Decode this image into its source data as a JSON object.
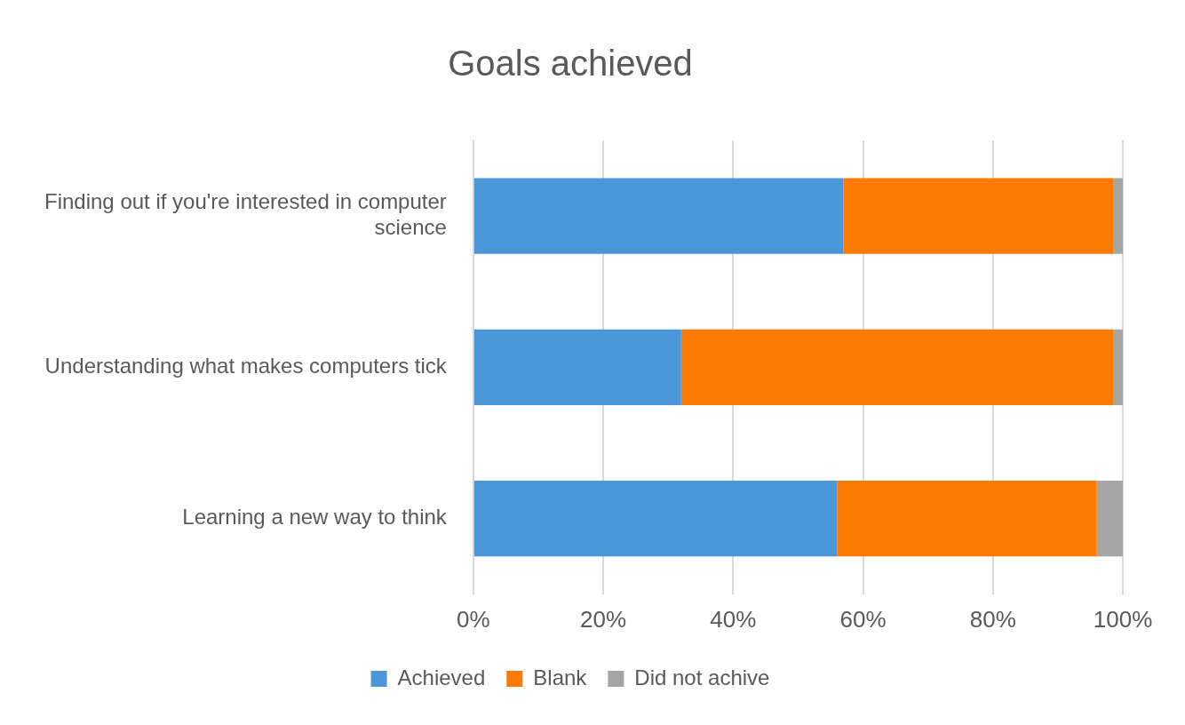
{
  "chart_data": {
    "type": "bar",
    "orientation": "horizontal",
    "stacked": true,
    "title": "Goals achieved",
    "categories": [
      "Finding out if you're interested in computer science",
      "Understanding what makes computers tick",
      "Learning a new way to think"
    ],
    "series": [
      {
        "name": "Achieved",
        "color": "#4a96d8",
        "values": [
          57,
          32,
          56
        ]
      },
      {
        "name": "Blank",
        "color": "#ff7a00",
        "values": [
          41.5,
          66.5,
          40
        ]
      },
      {
        "name": "Did not achive",
        "color": "#a5a5a5",
        "values": [
          1.5,
          1.5,
          4
        ]
      }
    ],
    "xlim": [
      0,
      100
    ],
    "xticks": [
      {
        "value": 0,
        "label": "0%"
      },
      {
        "value": 20,
        "label": "20%"
      },
      {
        "value": 40,
        "label": "40%"
      },
      {
        "value": 60,
        "label": "60%"
      },
      {
        "value": 80,
        "label": "80%"
      },
      {
        "value": 100,
        "label": "100%"
      }
    ],
    "grid": "x",
    "legend": "bottom"
  }
}
